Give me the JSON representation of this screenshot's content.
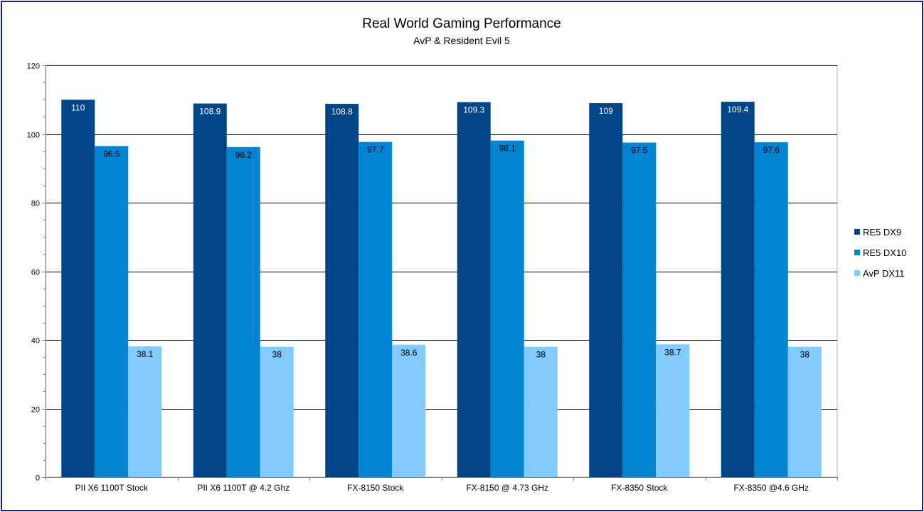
{
  "chart_data": {
    "type": "bar",
    "title": "Real World Gaming Performance",
    "subtitle": "AvP & Resident Evil 5",
    "categories": [
      "PII X6 1100T Stock",
      "PII X6 1100T @ 4.2 Ghz",
      "FX-8150 Stock",
      "FX-8150 @ 4.73 GHz",
      "FX-8350 Stock",
      "FX-8350 @4.6 GHz"
    ],
    "series": [
      {
        "name": "RE5 DX9",
        "color": "#004586",
        "values": [
          110,
          108.9,
          108.8,
          109.3,
          109,
          109.4
        ],
        "labels": [
          "110",
          "108.9",
          "108.8",
          "109.3",
          "109",
          "109.4"
        ]
      },
      {
        "name": "RE5 DX10",
        "color": "#0084d1",
        "values": [
          96.5,
          96.2,
          97.7,
          98.1,
          97.5,
          97.6
        ],
        "labels": [
          "96.5",
          "96.2",
          "97.7",
          "98.1",
          "97.5",
          "97.6"
        ]
      },
      {
        "name": "AvP DX11",
        "color": "#83caff",
        "values": [
          38.1,
          38,
          38.6,
          38,
          38.7,
          38
        ],
        "labels": [
          "38.1",
          "38",
          "38.6",
          "38",
          "38.7",
          "38"
        ]
      }
    ],
    "ylim": [
      0,
      120
    ],
    "yticks": [
      "0",
      "20",
      "40",
      "60",
      "80",
      "100",
      "120"
    ],
    "grid": true,
    "legend_position": "right"
  }
}
